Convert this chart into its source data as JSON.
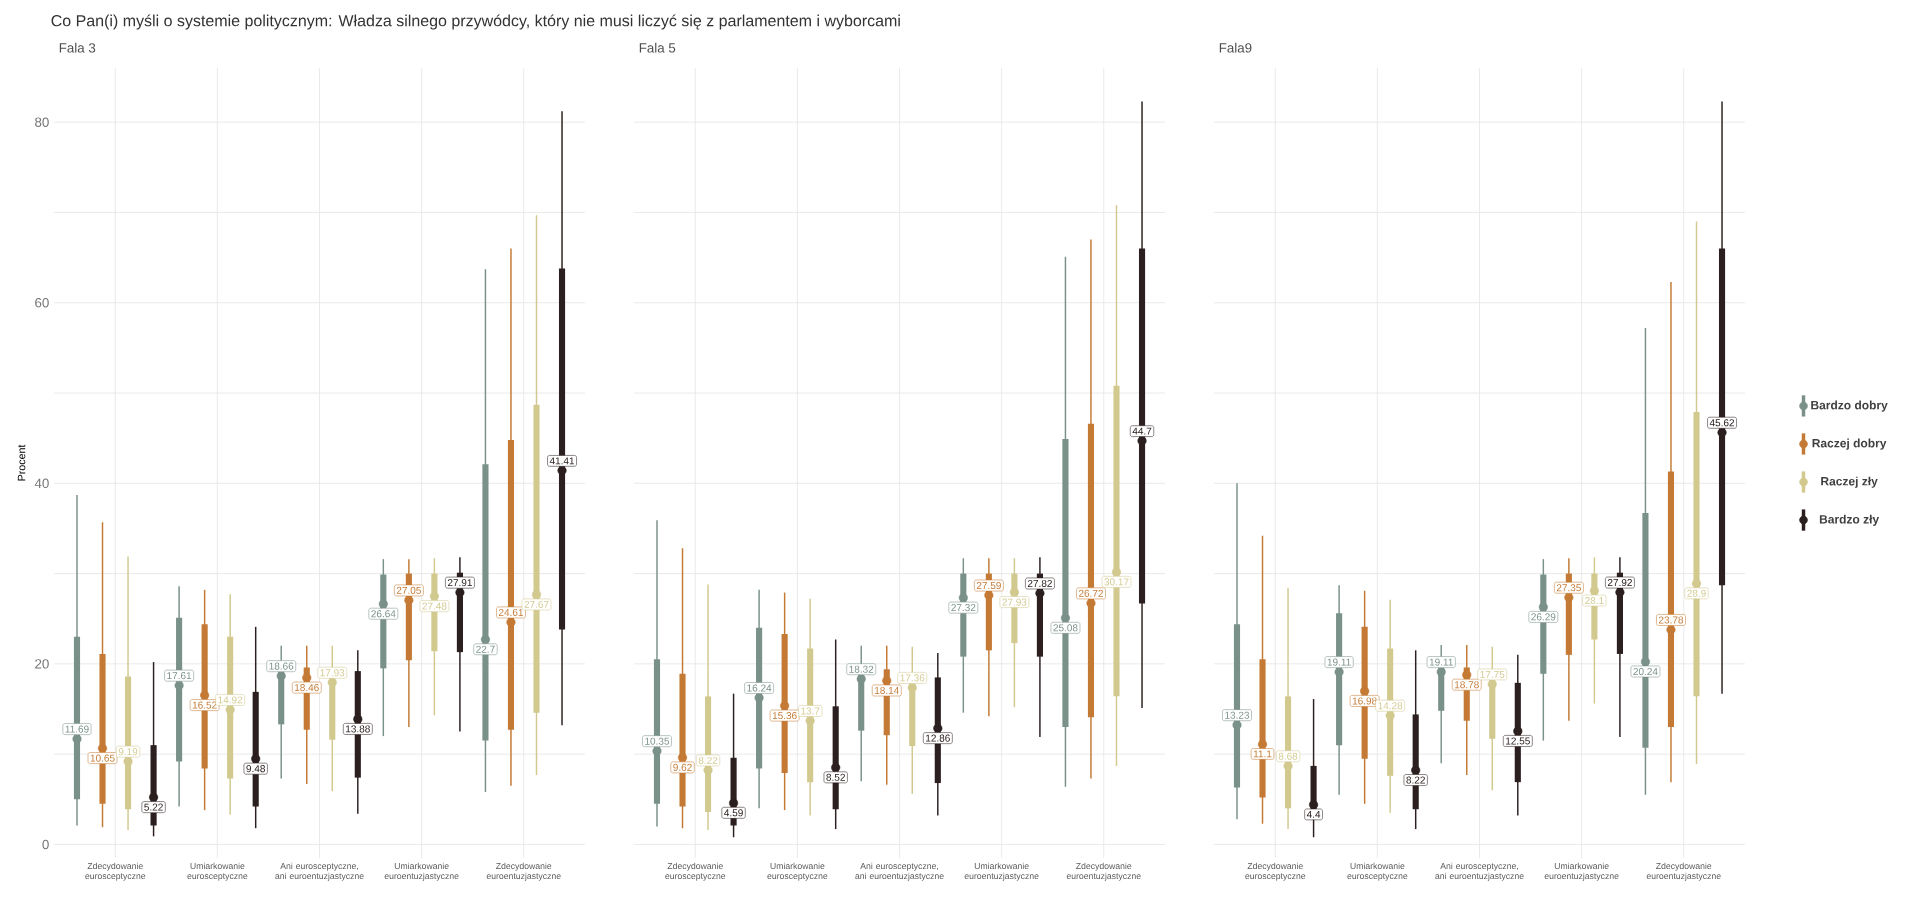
{
  "chart_data": [
    {
      "type": "box",
      "title": "Co Pan(i) myśli o systemie politycznym: Władza silnego przywódcy, który nie musi liczyć się z parlamentem i wyborcami",
      "subtitle": "Fala 3",
      "ylabel": "Procent",
      "legend": "right",
      "grid": true,
      "marker": "circle",
      "categories": [
        "Zdecydowanie eurosceptyczne",
        "Umiarkowanie eurosceptyczne",
        "Ani eurosceptyczne, ani euroentuzjastyczne",
        "Umiarkowanie euroentuzjastyczne",
        "Zdecydowanie euroentuzjastyczne"
      ],
      "ylim": [
        -1.5,
        86
      ],
      "yticks": [
        0,
        {
          "value": 10,
          "label": null
        },
        20,
        {
          "value": 30,
          "label": null
        },
        40,
        {
          "value": 50,
          "label": null
        },
        60,
        {
          "value": 70,
          "label": null
        },
        80
      ],
      "series": [
        {
          "name": "Bardzo dobry",
          "color": "#7a9189",
          "value_labels": [
            "11.69",
            "17.61",
            "18.66",
            "26.64",
            "22.7"
          ],
          "boxes": [
            {
              "low": 2.1,
              "q1": 5.0,
              "median": 11.69,
              "q3": 23.0,
              "high": 38.7
            },
            {
              "low": 4.2,
              "q1": 9.2,
              "median": 17.61,
              "q3": 25.1,
              "high": 28.6
            },
            {
              "low": 7.3,
              "q1": 13.3,
              "median": 18.66,
              "q3": 19.6,
              "high": 22.0
            },
            {
              "low": 12.0,
              "q1": 19.5,
              "median": 26.64,
              "q3": 29.9,
              "high": 31.6
            },
            {
              "low": 5.8,
              "q1": 11.5,
              "median": 22.7,
              "q3": 42.1,
              "high": 63.7
            }
          ]
        },
        {
          "name": "Raczej dobry",
          "color": "#c47a35",
          "value_labels": [
            "10.65",
            "16.52",
            "18.46",
            "27.05",
            "24.61"
          ],
          "boxes": [
            {
              "low": 1.9,
              "q1": 4.5,
              "median": 10.65,
              "q3": 21.1,
              "high": 35.7
            },
            {
              "low": 3.8,
              "q1": 8.4,
              "median": 16.52,
              "q3": 24.4,
              "high": 28.2
            },
            {
              "low": 6.7,
              "q1": 12.7,
              "median": 18.46,
              "q3": 19.6,
              "high": 22.0
            },
            {
              "low": 13.0,
              "q1": 20.4,
              "median": 27.05,
              "q3": 30.0,
              "high": 31.6
            },
            {
              "low": 6.5,
              "q1": 12.7,
              "median": 24.61,
              "q3": 44.8,
              "high": 66.0
            }
          ]
        },
        {
          "name": "Raczej zły",
          "color": "#d2c98f",
          "value_labels": [
            "9.19",
            "14.92",
            "17.93",
            "27.48",
            "27.67"
          ],
          "boxes": [
            {
              "low": 1.6,
              "q1": 3.9,
              "median": 9.19,
              "q3": 18.6,
              "high": 31.9
            },
            {
              "low": 3.3,
              "q1": 7.3,
              "median": 14.92,
              "q3": 23.0,
              "high": 27.7
            },
            {
              "low": 5.9,
              "q1": 11.6,
              "median": 17.93,
              "q3": 19.4,
              "high": 22.0
            },
            {
              "low": 14.3,
              "q1": 21.4,
              "median": 27.48,
              "q3": 30.0,
              "high": 31.7
            },
            {
              "low": 7.7,
              "q1": 14.6,
              "median": 27.67,
              "q3": 48.7,
              "high": 69.7
            }
          ]
        },
        {
          "name": "Bardzo zły",
          "color": "#2b1f1f",
          "value_labels": [
            "5.22",
            "9.48",
            "13.88",
            "27.91",
            "41.41"
          ],
          "boxes": [
            {
              "low": 0.9,
              "q1": 2.1,
              "median": 5.22,
              "q3": 11.0,
              "high": 20.2
            },
            {
              "low": 1.8,
              "q1": 4.2,
              "median": 9.48,
              "q3": 16.9,
              "high": 24.1
            },
            {
              "low": 3.4,
              "q1": 7.4,
              "median": 13.88,
              "q3": 19.2,
              "high": 21.5
            },
            {
              "low": 12.5,
              "q1": 21.3,
              "median": 27.91,
              "q3": 30.1,
              "high": 31.8
            },
            {
              "low": 13.2,
              "q1": 23.8,
              "median": 41.41,
              "q3": 63.8,
              "high": 81.2
            }
          ]
        }
      ]
    },
    {
      "type": "box",
      "subtitle": "Fala 5",
      "grid": true,
      "marker": "circle",
      "tick_labels": "x",
      "categories": [
        "Zdecydowanie eurosceptyczne",
        "Umiarkowanie eurosceptyczne",
        "Ani eurosceptyczne, ani euroentuzjastyczne",
        "Umiarkowanie euroentuzjastyczne",
        "Zdecydowanie euroentuzjastyczne"
      ],
      "ylim": [
        -1.5,
        86
      ],
      "yticks": [
        0,
        {
          "value": 10,
          "label": null
        },
        20,
        {
          "value": 30,
          "label": null
        },
        40,
        {
          "value": 50,
          "label": null
        },
        60,
        {
          "value": 70,
          "label": null
        },
        80
      ],
      "series": [
        {
          "color": "#7a9189",
          "value_labels": [
            "10.35",
            "16.24",
            "18.32",
            "27.32",
            "25.08"
          ],
          "boxes": [
            {
              "low": 2.0,
              "q1": 4.5,
              "median": 10.35,
              "q3": 20.5,
              "high": 35.9
            },
            {
              "low": 4.0,
              "q1": 8.4,
              "median": 16.24,
              "q3": 24.0,
              "high": 28.2
            },
            {
              "low": 7.0,
              "q1": 12.6,
              "median": 18.32,
              "q3": 19.4,
              "high": 22.0
            },
            {
              "low": 14.6,
              "q1": 20.8,
              "median": 27.32,
              "q3": 30.0,
              "high": 31.7
            },
            {
              "low": 6.4,
              "q1": 13.0,
              "median": 25.08,
              "q3": 44.9,
              "high": 65.1
            }
          ]
        },
        {
          "color": "#c47a35",
          "value_labels": [
            "9.62",
            "15.36",
            "18.14",
            "27.59",
            "26.72"
          ],
          "boxes": [
            {
              "low": 1.8,
              "q1": 4.2,
              "median": 9.62,
              "q3": 18.9,
              "high": 32.8
            },
            {
              "low": 3.8,
              "q1": 7.9,
              "median": 15.36,
              "q3": 23.3,
              "high": 27.9
            },
            {
              "low": 6.6,
              "q1": 12.1,
              "median": 18.14,
              "q3": 19.4,
              "high": 22.0
            },
            {
              "low": 14.2,
              "q1": 21.5,
              "median": 27.59,
              "q3": 30.0,
              "high": 31.7
            },
            {
              "low": 7.3,
              "q1": 14.1,
              "median": 26.72,
              "q3": 46.6,
              "high": 67.0
            }
          ]
        },
        {
          "color": "#d2c98f",
          "value_labels": [
            "8.22",
            "13.7",
            "17.36",
            "27.93",
            "30.17"
          ],
          "boxes": [
            {
              "low": 1.6,
              "q1": 3.6,
              "median": 8.22,
              "q3": 16.4,
              "high": 28.8
            },
            {
              "low": 3.2,
              "q1": 6.9,
              "median": 13.7,
              "q3": 21.7,
              "high": 27.2
            },
            {
              "low": 5.6,
              "q1": 10.9,
              "median": 17.36,
              "q3": 18.8,
              "high": 21.9
            },
            {
              "low": 15.2,
              "q1": 22.3,
              "median": 27.93,
              "q3": 30.0,
              "high": 31.7
            },
            {
              "low": 8.7,
              "q1": 16.4,
              "median": 30.17,
              "q3": 50.8,
              "high": 70.8
            }
          ]
        },
        {
          "color": "#2b1f1f",
          "value_labels": [
            "4.59",
            "8.52",
            "12.86",
            "27.82",
            "44.7"
          ],
          "boxes": [
            {
              "low": 0.8,
              "q1": 2.1,
              "median": 4.59,
              "q3": 9.6,
              "high": 16.7
            },
            {
              "low": 1.7,
              "q1": 3.9,
              "median": 8.52,
              "q3": 15.3,
              "high": 22.7
            },
            {
              "low": 3.2,
              "q1": 6.8,
              "median": 12.86,
              "q3": 18.5,
              "high": 21.2
            },
            {
              "low": 11.9,
              "q1": 20.8,
              "median": 27.82,
              "q3": 30.0,
              "high": 31.8
            },
            {
              "low": 15.1,
              "q1": 26.7,
              "median": 44.7,
              "q3": 66.0,
              "high": 82.3
            }
          ]
        }
      ]
    },
    {
      "type": "box",
      "subtitle": "Fala9",
      "grid": true,
      "marker": "circle",
      "tick_labels": "x",
      "categories": [
        "Zdecydowanie eurosceptyczne",
        "Umiarkowanie eurosceptyczne",
        "Ani eurosceptyczne, ani euroentuzjastyczne",
        "Umiarkowanie euroentuzjastyczne",
        "Zdecydowanie euroentuzjastyczne"
      ],
      "ylim": [
        -1.5,
        86
      ],
      "yticks": [
        0,
        {
          "value": 10,
          "label": null
        },
        20,
        {
          "value": 30,
          "label": null
        },
        40,
        {
          "value": 50,
          "label": null
        },
        60,
        {
          "value": 70,
          "label": null
        },
        80
      ],
      "series": [
        {
          "color": "#7a9189",
          "value_labels": [
            "13.23",
            "19.11",
            "19.11",
            "26.29",
            "20.24"
          ],
          "boxes": [
            {
              "low": 2.8,
              "q1": 6.3,
              "median": 13.23,
              "q3": 24.4,
              "high": 40.0
            },
            {
              "low": 5.5,
              "q1": 11.0,
              "median": 19.11,
              "q3": 25.6,
              "high": 28.7
            },
            {
              "low": 9.0,
              "q1": 14.8,
              "median": 19.11,
              "q3": 19.8,
              "high": 22.1
            },
            {
              "low": 11.5,
              "q1": 18.9,
              "median": 26.29,
              "q3": 29.9,
              "high": 31.6
            },
            {
              "low": 5.5,
              "q1": 10.7,
              "median": 20.24,
              "q3": 36.7,
              "high": 57.2
            }
          ]
        },
        {
          "color": "#c47a35",
          "value_labels": [
            "11.1",
            "16.98",
            "18.78",
            "27.35",
            "23.78"
          ],
          "boxes": [
            {
              "low": 2.3,
              "q1": 5.2,
              "median": 11.1,
              "q3": 20.5,
              "high": 34.2
            },
            {
              "low": 4.5,
              "q1": 9.5,
              "median": 16.98,
              "q3": 24.1,
              "high": 28.1
            },
            {
              "low": 7.7,
              "q1": 13.7,
              "median": 18.78,
              "q3": 19.6,
              "high": 22.1
            },
            {
              "low": 13.7,
              "q1": 21.0,
              "median": 27.35,
              "q3": 30.0,
              "high": 31.7
            },
            {
              "low": 6.9,
              "q1": 13.0,
              "median": 23.78,
              "q3": 41.3,
              "high": 62.3
            }
          ]
        },
        {
          "color": "#d2c98f",
          "value_labels": [
            "8.68",
            "14.28",
            "17.75",
            "28.1",
            "28.9"
          ],
          "boxes": [
            {
              "low": 1.7,
              "q1": 4.0,
              "median": 8.68,
              "q3": 16.4,
              "high": 28.4
            },
            {
              "low": 3.5,
              "q1": 7.6,
              "median": 14.28,
              "q3": 21.7,
              "high": 27.1
            },
            {
              "low": 6.0,
              "q1": 11.7,
              "median": 17.75,
              "q3": 18.8,
              "high": 21.9
            },
            {
              "low": 15.6,
              "q1": 22.7,
              "median": 28.1,
              "q3": 30.0,
              "high": 31.8
            },
            {
              "low": 8.9,
              "q1": 16.4,
              "median": 28.9,
              "q3": 47.9,
              "high": 69.0
            }
          ]
        },
        {
          "color": "#2b1f1f",
          "value_labels": [
            "4.4",
            "8.22",
            "12.55",
            "27.92",
            "45.62"
          ],
          "boxes": [
            {
              "low": 0.8,
              "q1": 2.8,
              "median": 4.4,
              "q3": 8.7,
              "high": 16.1
            },
            {
              "low": 1.7,
              "q1": 3.9,
              "median": 8.22,
              "q3": 14.4,
              "high": 21.5
            },
            {
              "low": 3.2,
              "q1": 6.9,
              "median": 12.55,
              "q3": 17.9,
              "high": 21.0
            },
            {
              "low": 11.9,
              "q1": 21.1,
              "median": 27.92,
              "q3": 30.1,
              "high": 31.8
            },
            {
              "low": 16.7,
              "q1": 28.7,
              "median": 45.62,
              "q3": 66.0,
              "high": 82.3
            }
          ]
        }
      ]
    }
  ]
}
